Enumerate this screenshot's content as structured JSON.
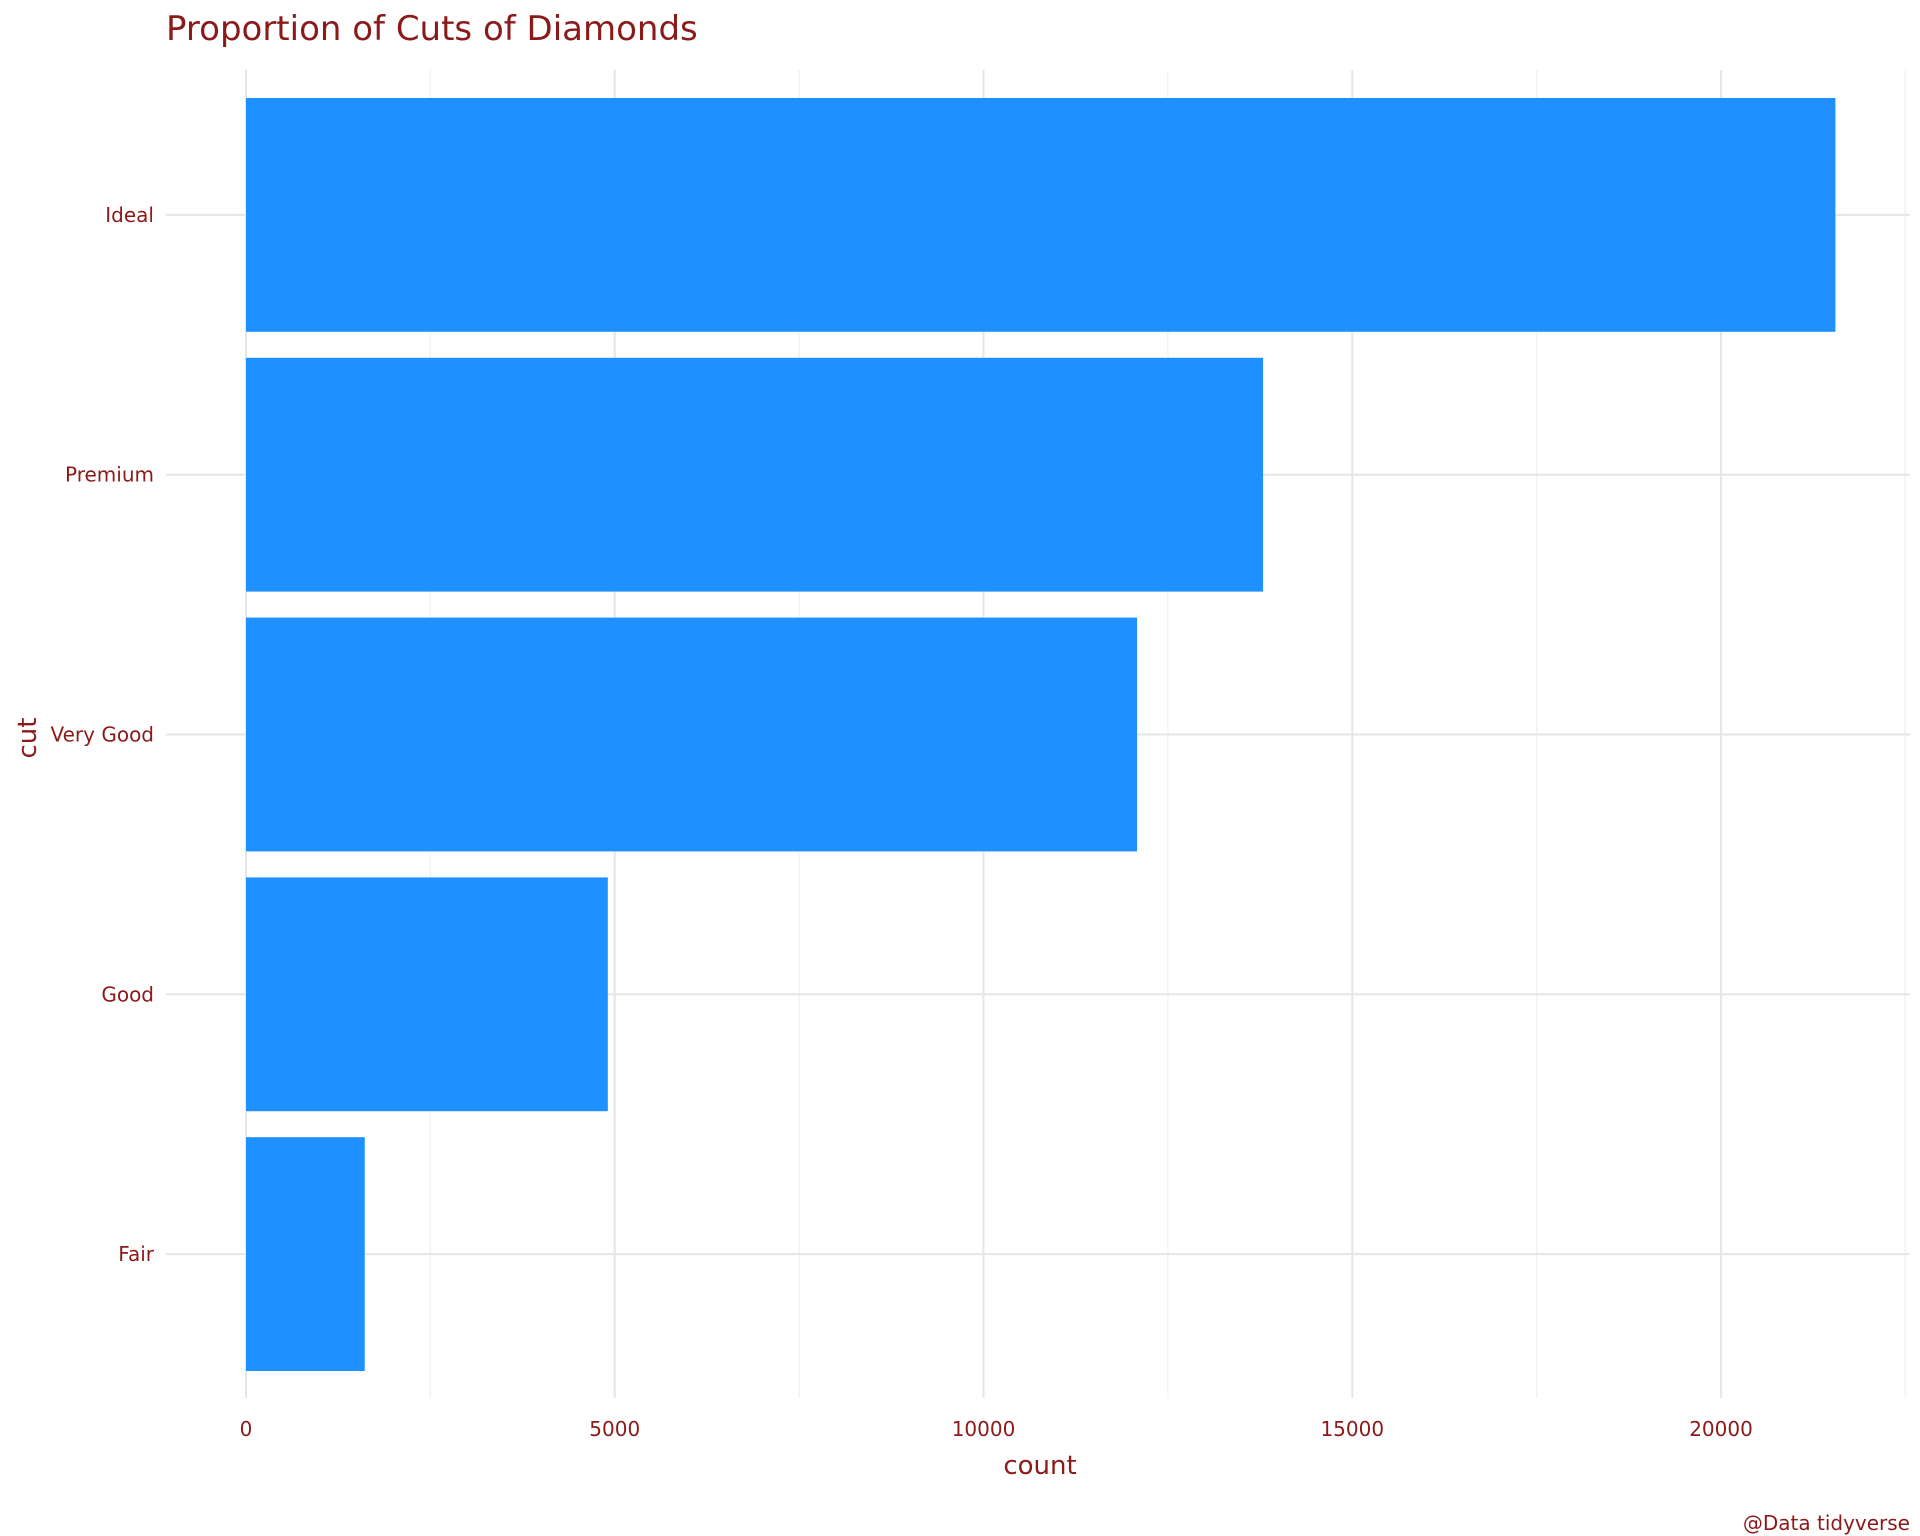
{
  "chart_data": {
    "type": "bar",
    "orientation": "horizontal",
    "title": "Proportion of Cuts of Diamonds",
    "xlabel": "count",
    "ylabel": "cut",
    "caption": "@Data tidyverse",
    "categories": [
      "Ideal",
      "Premium",
      "Very Good",
      "Good",
      "Fair"
    ],
    "values": [
      21551,
      13791,
      12082,
      4906,
      1610
    ],
    "xlim": [
      0,
      22500
    ],
    "x_ticks": [
      0,
      5000,
      10000,
      15000,
      20000
    ],
    "x_tick_labels": [
      "0",
      "5000",
      "10000",
      "15000",
      "20000"
    ],
    "grid": true,
    "legend": "none",
    "colors": {
      "bar": "#1E90FF",
      "text": "#8B1A1A",
      "grid_major": "#E6E6E6",
      "grid_minor": "#F2F2F2"
    }
  }
}
